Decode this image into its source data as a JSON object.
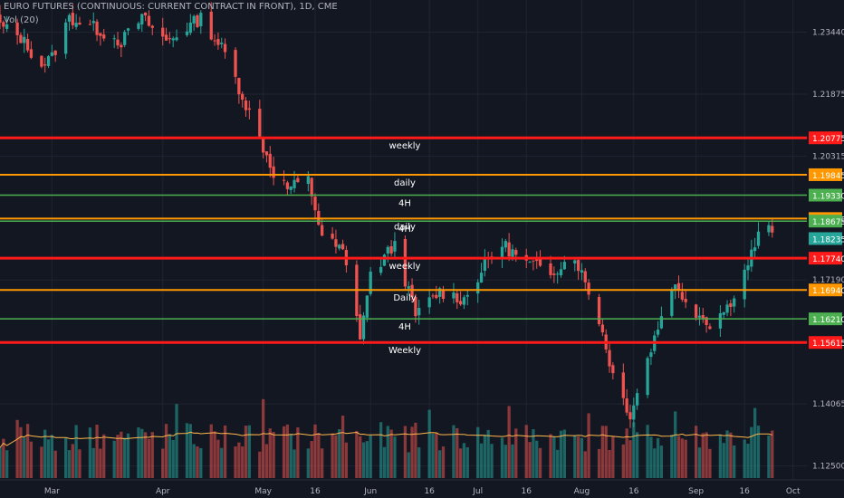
{
  "header": {
    "title": "EURO FUTURES (CONTINUOUS: CURRENT CONTRACT IN FRONT), 1D, CME",
    "volume_label": "Vol (20)"
  },
  "colors": {
    "background": "#131722",
    "up_candle": "#26a69a",
    "down_candle": "#ef5350",
    "grid": "#1f2433",
    "axis_text": "#b2b5be",
    "weekly_line": "#ff1a1a",
    "daily_line": "#ff9800",
    "h4_line": "#4caf50",
    "volume_ma": "#ffb74d"
  },
  "chart_data": {
    "type": "candlestick",
    "title": "EURO FUTURES (CONTINUOUS: CURRENT CONTRACT IN FRONT), 1D, CME",
    "y_axis": {
      "position": "right",
      "ylim": [
        1.1215,
        1.2425
      ],
      "tick_labels": [
        "1.23440",
        "1.21875",
        "1.20315",
        "1.17190",
        "1.14065",
        "1.12500"
      ],
      "tick_values": [
        1.2344,
        1.21875,
        1.20315,
        1.1719,
        1.14065,
        1.125
      ]
    },
    "x_axis": {
      "tick_labels": [
        "Mar",
        "Apr",
        "May",
        "16",
        "Jun",
        "16",
        "Jul",
        "16",
        "Aug",
        "16",
        "Sep",
        "16",
        "Oct"
      ],
      "tick_dates": [
        "2018-03-01",
        "2018-04-02",
        "2018-05-01",
        "2018-05-16",
        "2018-06-01",
        "2018-06-18",
        "2018-07-02",
        "2018-07-16",
        "2018-08-01",
        "2018-08-16",
        "2018-09-03",
        "2018-09-17",
        "2018-10-01"
      ],
      "start_date": "2018-02-14",
      "end_date": "2018-10-05"
    },
    "grid": true,
    "series": [
      {
        "kind": "close_path",
        "points": [
          {
            "date": "2018-02-14",
            "close": 1.236
          },
          {
            "date": "2018-02-20",
            "close": 1.233
          },
          {
            "date": "2018-02-26",
            "close": 1.226
          },
          {
            "date": "2018-03-01",
            "close": 1.228
          },
          {
            "date": "2018-03-06",
            "close": 1.238
          },
          {
            "date": "2018-03-12",
            "close": 1.236
          },
          {
            "date": "2018-03-21",
            "close": 1.232
          },
          {
            "date": "2018-03-27",
            "close": 1.238
          },
          {
            "date": "2018-04-03",
            "close": 1.232
          },
          {
            "date": "2018-04-13",
            "close": 1.238
          },
          {
            "date": "2018-04-20",
            "close": 1.229
          },
          {
            "date": "2018-04-27",
            "close": 1.214
          },
          {
            "date": "2018-05-04",
            "close": 1.199
          },
          {
            "date": "2018-05-08",
            "close": 1.195
          },
          {
            "date": "2018-05-14",
            "close": 1.197
          },
          {
            "date": "2018-05-18",
            "close": 1.183
          },
          {
            "date": "2018-05-24",
            "close": 1.179
          },
          {
            "date": "2018-05-29",
            "close": 1.158
          },
          {
            "date": "2018-06-01",
            "close": 1.173
          },
          {
            "date": "2018-06-08",
            "close": 1.181
          },
          {
            "date": "2018-06-14",
            "close": 1.163
          },
          {
            "date": "2018-06-21",
            "close": 1.169
          },
          {
            "date": "2018-06-28",
            "close": 1.167
          },
          {
            "date": "2018-07-05",
            "close": 1.177
          },
          {
            "date": "2018-07-09",
            "close": 1.181
          },
          {
            "date": "2018-07-16",
            "close": 1.176
          },
          {
            "date": "2018-07-23",
            "close": 1.174
          },
          {
            "date": "2018-07-30",
            "close": 1.178
          },
          {
            "date": "2018-08-06",
            "close": 1.162
          },
          {
            "date": "2018-08-10",
            "close": 1.148
          },
          {
            "date": "2018-08-15",
            "close": 1.138
          },
          {
            "date": "2018-08-20",
            "close": 1.152
          },
          {
            "date": "2018-08-27",
            "close": 1.171
          },
          {
            "date": "2018-09-03",
            "close": 1.164
          },
          {
            "date": "2018-09-07",
            "close": 1.161
          },
          {
            "date": "2018-09-12",
            "close": 1.165
          },
          {
            "date": "2018-09-17",
            "close": 1.174
          },
          {
            "date": "2018-09-21",
            "close": 1.183
          },
          {
            "date": "2018-09-25",
            "close": 1.185
          }
        ]
      }
    ],
    "levels": [
      {
        "value": 1.20775,
        "tf": "weekly",
        "label_text": "weekly",
        "price_label": "1.20775"
      },
      {
        "value": 1.19845,
        "tf": "daily",
        "label_text": "daily",
        "price_label": "1.19845"
      },
      {
        "value": 1.1933,
        "tf": "4h",
        "label_text": "4H",
        "price_label": "1.19330"
      },
      {
        "value": 1.1874,
        "tf": "daily",
        "label_text": "daily",
        "price_label": "1.18740"
      },
      {
        "value": 1.18675,
        "tf": "4h",
        "label_text": "4H",
        "price_label": "1.18675"
      },
      {
        "value": 1.18235,
        "tf": "current",
        "label_text": "",
        "price_label": "1.18235"
      },
      {
        "value": 1.1774,
        "tf": "weekly",
        "label_text": "weekly",
        "price_label": "1.17740"
      },
      {
        "value": 1.1694,
        "tf": "daily",
        "label_text": "Daily",
        "price_label": "1.16940"
      },
      {
        "value": 1.1621,
        "tf": "4h",
        "label_text": "4H",
        "price_label": "1.16210"
      },
      {
        "value": 1.15615,
        "tf": "weekly",
        "label_text": "Weekly",
        "price_label": "1.15615"
      }
    ],
    "volume": {
      "label": "Vol (20)",
      "moving_average_period": 20
    }
  }
}
